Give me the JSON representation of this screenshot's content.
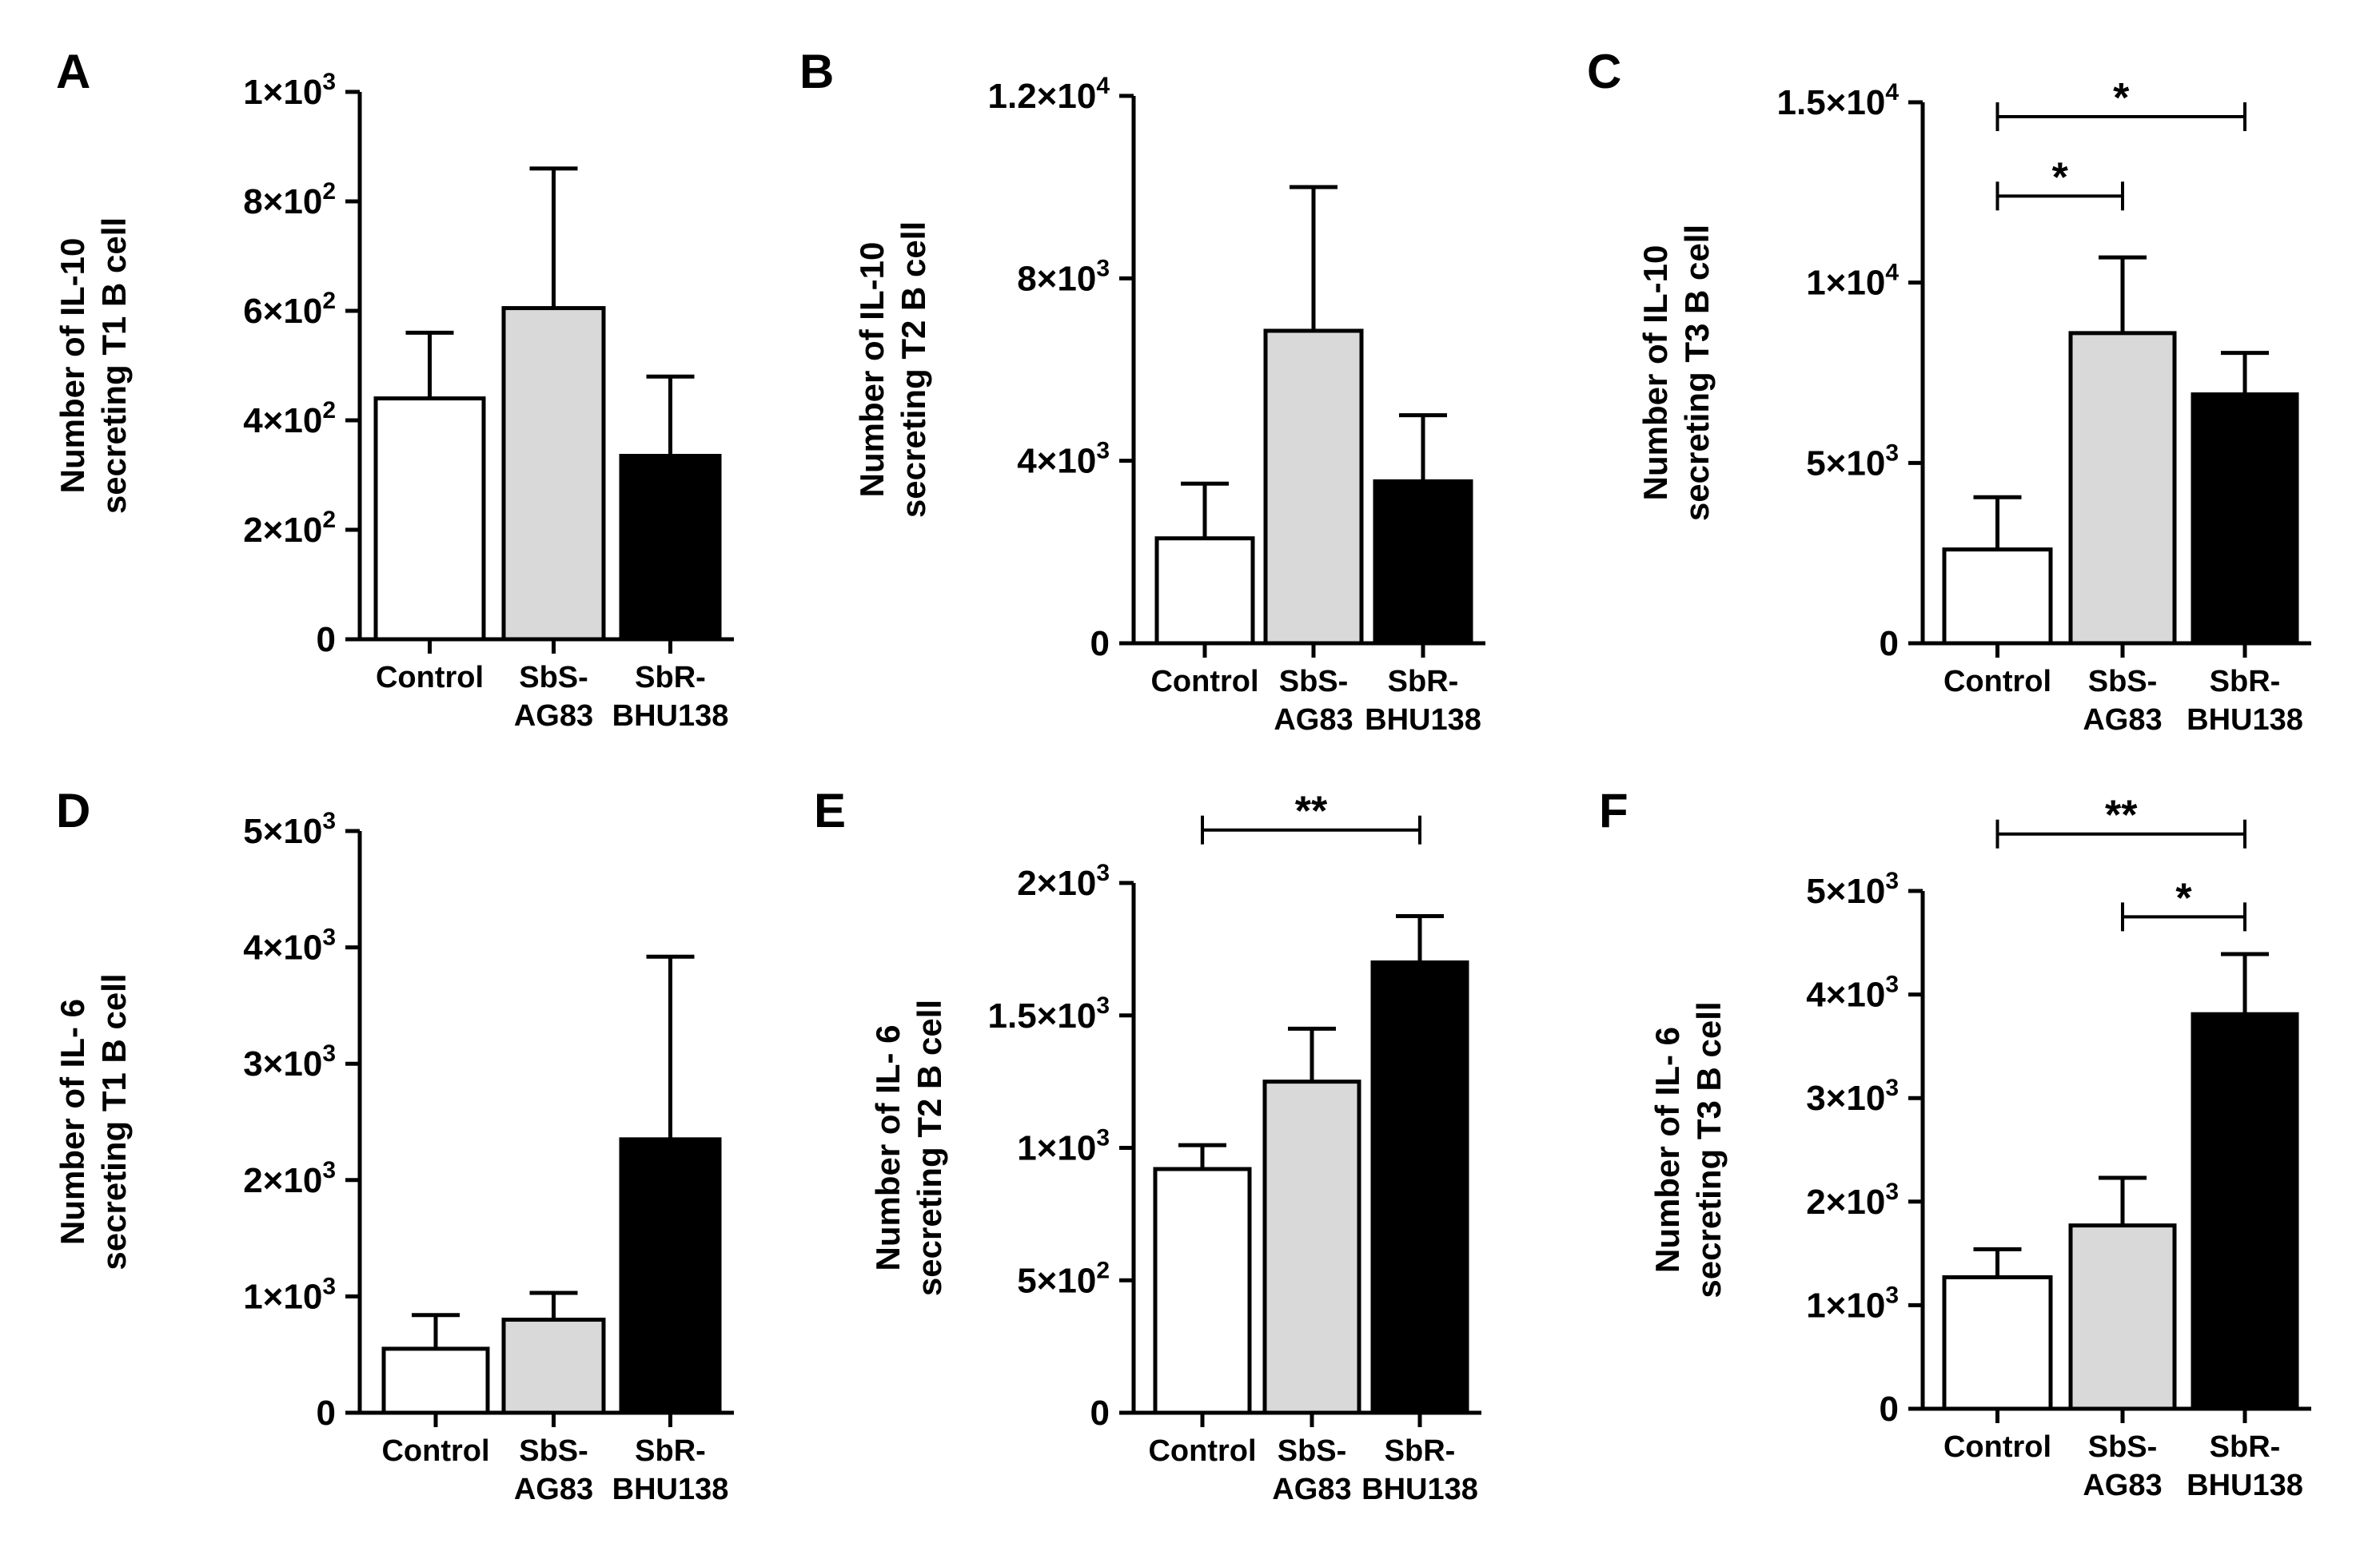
{
  "figure": {
    "description": "Six bar chart panels A-F"
  },
  "colors": {
    "Control": "#ffffff",
    "SbS-AG83": "#d9d9d9",
    "SbR-BHU138": "#000000",
    "axis": "#000000"
  },
  "chart_data": [
    {
      "panel": "A",
      "type": "bar",
      "ylabel": [
        "Number of IL-10",
        "secreting T1 B cell"
      ],
      "categories": [
        [
          "Control"
        ],
        [
          "SbS-",
          "AG83"
        ],
        [
          "SbR-",
          "BHU138"
        ]
      ],
      "values": [
        440,
        605,
        335
      ],
      "errors": [
        120,
        255,
        145
      ],
      "ylim": [
        0,
        1000
      ],
      "ticks": [
        {
          "v": 0,
          "m": "0",
          "e": ""
        },
        {
          "v": 200,
          "m": "2×10",
          "e": "2"
        },
        {
          "v": 400,
          "m": "4×10",
          "e": "2"
        },
        {
          "v": 600,
          "m": "6×10",
          "e": "2"
        },
        {
          "v": 800,
          "m": "8×10",
          "e": "2"
        },
        {
          "v": 1000,
          "m": "1×10",
          "e": "3"
        }
      ],
      "significance": []
    },
    {
      "panel": "B",
      "type": "bar",
      "ylabel": [
        "Number of IL-10",
        "secreting T2 B cell"
      ],
      "categories": [
        [
          "Control"
        ],
        [
          "SbS-",
          "AG83"
        ],
        [
          "SbR-",
          "BHU138"
        ]
      ],
      "values": [
        2300,
        6850,
        3550
      ],
      "errors": [
        1200,
        3150,
        1450
      ],
      "ylim": [
        0,
        12000
      ],
      "ticks": [
        {
          "v": 0,
          "m": "0",
          "e": ""
        },
        {
          "v": 4000,
          "m": "4×10",
          "e": "3"
        },
        {
          "v": 8000,
          "m": "8×10",
          "e": "3"
        },
        {
          "v": 12000,
          "m": "1.2×10",
          "e": "4"
        }
      ],
      "significance": []
    },
    {
      "panel": "C",
      "type": "bar",
      "ylabel": [
        "Number of IL-10",
        "secreting T3 B cell"
      ],
      "categories": [
        [
          "Control"
        ],
        [
          "SbS-",
          "AG83"
        ],
        [
          "SbR-",
          "BHU138"
        ]
      ],
      "values": [
        2600,
        8600,
        6900
      ],
      "errors": [
        1450,
        2100,
        1150
      ],
      "ylim": [
        0,
        15000
      ],
      "ticks": [
        {
          "v": 0,
          "m": "0",
          "e": ""
        },
        {
          "v": 5000,
          "m": "5×10",
          "e": "3"
        },
        {
          "v": 10000,
          "m": "1×10",
          "e": "4"
        },
        {
          "v": 15000,
          "m": "1.5×10",
          "e": "4"
        }
      ],
      "significance": [
        {
          "from": 0,
          "to": 2,
          "label": "*",
          "y": 14600
        },
        {
          "from": 0,
          "to": 1,
          "label": "*",
          "y": 12400
        }
      ]
    },
    {
      "panel": "D",
      "type": "bar",
      "ylabel": [
        "Number of IL- 6",
        "secreting T1 B cell"
      ],
      "categories": [
        [
          "Control"
        ],
        [
          "SbS-",
          "AG83"
        ],
        [
          "SbR-",
          "BHU138"
        ]
      ],
      "values": [
        550,
        800,
        2350
      ],
      "errors": [
        290,
        230,
        1570
      ],
      "ylim": [
        0,
        5000
      ],
      "ticks": [
        {
          "v": 0,
          "m": "0",
          "e": ""
        },
        {
          "v": 1000,
          "m": "1×10",
          "e": "3"
        },
        {
          "v": 2000,
          "m": "2×10",
          "e": "3"
        },
        {
          "v": 3000,
          "m": "3×10",
          "e": "3"
        },
        {
          "v": 4000,
          "m": "4×10",
          "e": "3"
        },
        {
          "v": 5000,
          "m": "5×10",
          "e": "3"
        }
      ],
      "significance": []
    },
    {
      "panel": "E",
      "type": "bar",
      "ylabel": [
        "Number of IL- 6",
        "secreting T2 B cell"
      ],
      "categories": [
        [
          "Control"
        ],
        [
          "SbS-",
          "AG83"
        ],
        [
          "SbR-",
          "BHU138"
        ]
      ],
      "values": [
        920,
        1250,
        1700
      ],
      "errors": [
        90,
        200,
        175
      ],
      "ylim": [
        0,
        2000
      ],
      "ticks": [
        {
          "v": 0,
          "m": "0",
          "e": ""
        },
        {
          "v": 500,
          "m": "5×10",
          "e": "2"
        },
        {
          "v": 1000,
          "m": "1×10",
          "e": "3"
        },
        {
          "v": 1500,
          "m": "1.5×10",
          "e": "3"
        },
        {
          "v": 2000,
          "m": "2×10",
          "e": "3"
        }
      ],
      "significance": [
        {
          "from": 0,
          "to": 2,
          "label": "**",
          "y": 2200
        }
      ]
    },
    {
      "panel": "F",
      "type": "bar",
      "ylabel": [
        "Number of IL- 6",
        "secreting T3 B cell"
      ],
      "categories": [
        [
          "Control"
        ],
        [
          "SbS-",
          "AG83"
        ],
        [
          "SbR-",
          "BHU138"
        ]
      ],
      "values": [
        1270,
        1770,
        3810
      ],
      "errors": [
        270,
        460,
        580
      ],
      "ylim": [
        0,
        5000
      ],
      "ticks": [
        {
          "v": 0,
          "m": "0",
          "e": ""
        },
        {
          "v": 1000,
          "m": "1×10",
          "e": "3"
        },
        {
          "v": 2000,
          "m": "2×10",
          "e": "3"
        },
        {
          "v": 3000,
          "m": "3×10",
          "e": "3"
        },
        {
          "v": 4000,
          "m": "4×10",
          "e": "3"
        },
        {
          "v": 5000,
          "m": "5×10",
          "e": "3"
        }
      ],
      "significance": [
        {
          "from": 0,
          "to": 2,
          "label": "**",
          "y": 5550
        },
        {
          "from": 1,
          "to": 2,
          "label": "*",
          "y": 4750
        }
      ]
    }
  ]
}
